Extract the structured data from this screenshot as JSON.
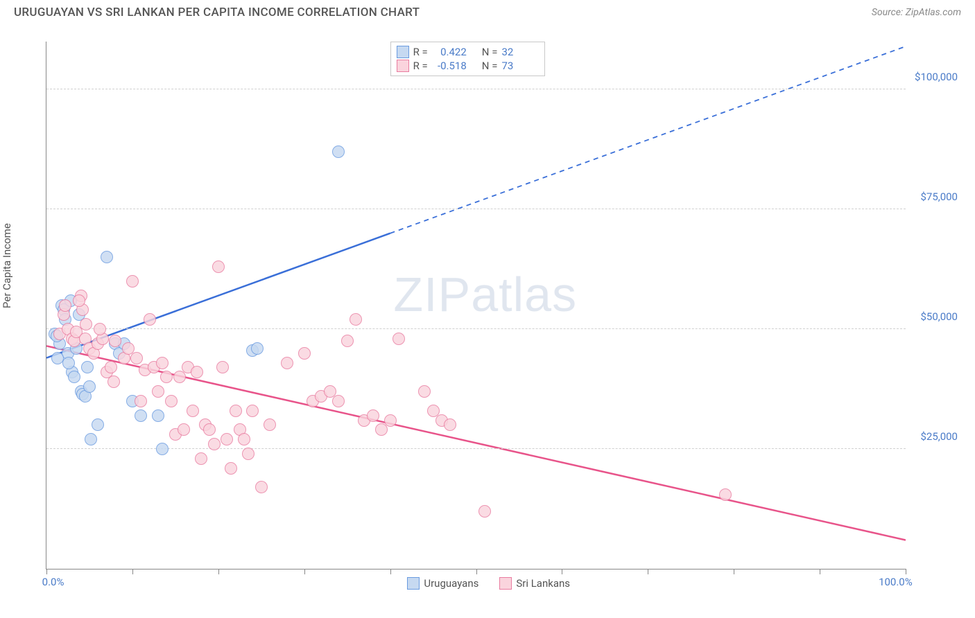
{
  "header": {
    "title": "URUGUAYAN VS SRI LANKAN PER CAPITA INCOME CORRELATION CHART",
    "source_label": "Source:",
    "source_name": "ZipAtlas.com"
  },
  "chart": {
    "type": "scatter",
    "ylabel": "Per Capita Income",
    "xlim": [
      0,
      100
    ],
    "ylim": [
      0,
      110000
    ],
    "xticks": [
      0,
      10,
      20,
      30,
      40,
      50,
      60,
      70,
      80,
      90,
      100
    ],
    "xtick_labels": {
      "0": "0.0%",
      "100": "100.0%"
    },
    "yticks": [
      25000,
      50000,
      75000,
      100000
    ],
    "ytick_labels": [
      "$25,000",
      "$50,000",
      "$75,000",
      "$100,000"
    ],
    "background_color": "#ffffff",
    "grid_color": "#d0d0d0",
    "axis_color": "#888888",
    "label_color": "#4a7bc8",
    "marker_radius": 9,
    "watermark": "ZIPatlas",
    "series": [
      {
        "name": "Uruguayans",
        "fill": "#c6d9f1",
        "stroke": "#6a9be0",
        "line_color": "#3a6fd8",
        "trend": {
          "x1": 0,
          "y1": 44000,
          "x2": 40,
          "y2": 70000,
          "x2_dash": 100,
          "y2_dash": 109000
        },
        "r_label": "R =",
        "r_value": "0.422",
        "n_label": "N =",
        "n_value": "32",
        "points": [
          [
            1.5,
            47000
          ],
          [
            1.8,
            55000
          ],
          [
            2.0,
            54000
          ],
          [
            2.2,
            52000
          ],
          [
            1.0,
            49000
          ],
          [
            1.2,
            48500
          ],
          [
            2.5,
            45000
          ],
          [
            3.0,
            41000
          ],
          [
            3.2,
            40000
          ],
          [
            3.5,
            46000
          ],
          [
            4.0,
            37000
          ],
          [
            4.2,
            36500
          ],
          [
            4.5,
            36000
          ],
          [
            5.0,
            38000
          ],
          [
            5.2,
            27000
          ],
          [
            6.0,
            30000
          ],
          [
            7.0,
            65000
          ],
          [
            8.0,
            47000
          ],
          [
            8.5,
            45000
          ],
          [
            9.0,
            47000
          ],
          [
            10.0,
            35000
          ],
          [
            11.0,
            32000
          ],
          [
            13.0,
            32000
          ],
          [
            13.5,
            25000
          ],
          [
            24.0,
            45500
          ],
          [
            24.5,
            46000
          ],
          [
            34.0,
            87000
          ],
          [
            4.8,
            42000
          ],
          [
            2.8,
            56000
          ],
          [
            3.8,
            53000
          ],
          [
            1.3,
            44000
          ],
          [
            2.6,
            43000
          ]
        ]
      },
      {
        "name": "Sri Lankans",
        "fill": "#fad4dd",
        "stroke": "#e97ca0",
        "line_color": "#e8548a",
        "trend": {
          "x1": 0,
          "y1": 46500,
          "x2": 100,
          "y2": 6000
        },
        "r_label": "R =",
        "r_value": "-0.518",
        "n_label": "N =",
        "n_value": "73",
        "points": [
          [
            1.5,
            49000
          ],
          [
            2.0,
            53000
          ],
          [
            2.2,
            55000
          ],
          [
            2.5,
            50000
          ],
          [
            3.0,
            48000
          ],
          [
            3.2,
            47500
          ],
          [
            3.5,
            49500
          ],
          [
            4.0,
            57000
          ],
          [
            4.2,
            54000
          ],
          [
            4.5,
            48000
          ],
          [
            5.0,
            46000
          ],
          [
            5.5,
            45000
          ],
          [
            6.0,
            47000
          ],
          [
            6.5,
            48000
          ],
          [
            7.0,
            41000
          ],
          [
            7.5,
            42000
          ],
          [
            8.0,
            47500
          ],
          [
            9.0,
            44000
          ],
          [
            10.0,
            60000
          ],
          [
            10.5,
            44000
          ],
          [
            11.0,
            35000
          ],
          [
            11.5,
            41500
          ],
          [
            12.0,
            52000
          ],
          [
            12.5,
            42000
          ],
          [
            13.0,
            37000
          ],
          [
            13.5,
            43000
          ],
          [
            14.0,
            40000
          ],
          [
            15.0,
            28000
          ],
          [
            15.5,
            40000
          ],
          [
            16.0,
            29000
          ],
          [
            16.5,
            42000
          ],
          [
            17.0,
            33000
          ],
          [
            17.5,
            41000
          ],
          [
            18.0,
            23000
          ],
          [
            18.5,
            30000
          ],
          [
            19.0,
            29000
          ],
          [
            20.0,
            63000
          ],
          [
            20.5,
            42000
          ],
          [
            21.0,
            27000
          ],
          [
            21.5,
            21000
          ],
          [
            22.0,
            33000
          ],
          [
            22.5,
            29000
          ],
          [
            23.0,
            27000
          ],
          [
            23.5,
            24000
          ],
          [
            24.0,
            33000
          ],
          [
            25.0,
            17000
          ],
          [
            26.0,
            30000
          ],
          [
            28.0,
            43000
          ],
          [
            30.0,
            45000
          ],
          [
            31.0,
            35000
          ],
          [
            32.0,
            36000
          ],
          [
            33.0,
            37000
          ],
          [
            34.0,
            35000
          ],
          [
            35.0,
            47500
          ],
          [
            36.0,
            52000
          ],
          [
            37.0,
            31000
          ],
          [
            38.0,
            32000
          ],
          [
            39.0,
            29000
          ],
          [
            40.0,
            31000
          ],
          [
            41.0,
            48000
          ],
          [
            44.0,
            37000
          ],
          [
            45.0,
            33000
          ],
          [
            46.0,
            31000
          ],
          [
            47.0,
            30000
          ],
          [
            51.0,
            12000
          ],
          [
            79.0,
            15500
          ],
          [
            3.8,
            56000
          ],
          [
            4.6,
            51000
          ],
          [
            6.2,
            50000
          ],
          [
            7.8,
            39000
          ],
          [
            9.5,
            46000
          ],
          [
            14.5,
            35000
          ],
          [
            19.5,
            26000
          ]
        ]
      }
    ]
  }
}
